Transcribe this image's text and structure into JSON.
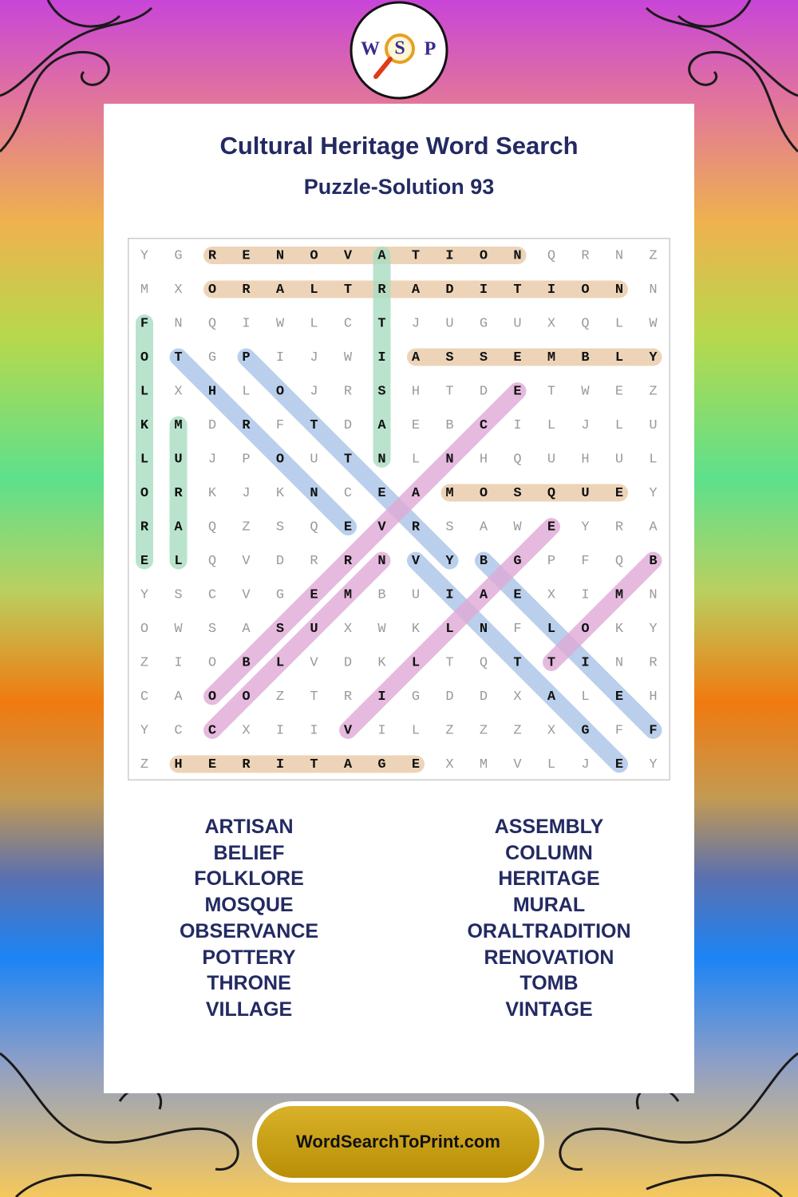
{
  "logo": [
    "W",
    "S",
    "P"
  ],
  "header": {
    "title": "Cultural Heritage Word Search",
    "subtitle": "Puzzle-Solution 93"
  },
  "grid": {
    "rows": [
      [
        "Y",
        "G",
        "R",
        "E",
        "N",
        "O",
        "V",
        "A",
        "T",
        "I",
        "O",
        "N",
        "Q",
        "R",
        "N",
        "Z"
      ],
      [
        "M",
        "X",
        "O",
        "R",
        "A",
        "L",
        "T",
        "R",
        "A",
        "D",
        "I",
        "T",
        "I",
        "O",
        "N",
        "N"
      ],
      [
        "F",
        "N",
        "Q",
        "I",
        "W",
        "L",
        "C",
        "T",
        "J",
        "U",
        "G",
        "U",
        "X",
        "Q",
        "L",
        "W"
      ],
      [
        "O",
        "T",
        "G",
        "P",
        "I",
        "J",
        "W",
        "I",
        "A",
        "S",
        "S",
        "E",
        "M",
        "B",
        "L",
        "Y"
      ],
      [
        "L",
        "X",
        "H",
        "L",
        "O",
        "J",
        "R",
        "S",
        "H",
        "T",
        "D",
        "E",
        "T",
        "W",
        "E",
        "Z"
      ],
      [
        "K",
        "M",
        "D",
        "R",
        "F",
        "T",
        "D",
        "A",
        "E",
        "B",
        "C",
        "I",
        "L",
        "J",
        "L",
        "U"
      ],
      [
        "L",
        "U",
        "J",
        "P",
        "O",
        "U",
        "T",
        "N",
        "L",
        "N",
        "H",
        "Q",
        "U",
        "H",
        "U",
        "L"
      ],
      [
        "O",
        "R",
        "K",
        "J",
        "K",
        "N",
        "C",
        "E",
        "A",
        "M",
        "O",
        "S",
        "Q",
        "U",
        "E",
        "Y"
      ],
      [
        "R",
        "A",
        "Q",
        "Z",
        "S",
        "Q",
        "E",
        "V",
        "R",
        "S",
        "A",
        "W",
        "E",
        "Y",
        "R",
        "A"
      ],
      [
        "E",
        "L",
        "Q",
        "V",
        "D",
        "R",
        "R",
        "N",
        "V",
        "Y",
        "B",
        "G",
        "P",
        "F",
        "Q",
        "B"
      ],
      [
        "Y",
        "S",
        "C",
        "V",
        "G",
        "E",
        "M",
        "B",
        "U",
        "I",
        "A",
        "E",
        "X",
        "I",
        "M",
        "N"
      ],
      [
        "O",
        "W",
        "S",
        "A",
        "S",
        "U",
        "X",
        "W",
        "K",
        "L",
        "N",
        "F",
        "L",
        "O",
        "K",
        "Y"
      ],
      [
        "Z",
        "I",
        "O",
        "B",
        "L",
        "V",
        "D",
        "K",
        "L",
        "T",
        "Q",
        "T",
        "T",
        "I",
        "N",
        "R"
      ],
      [
        "C",
        "A",
        "O",
        "O",
        "Z",
        "T",
        "R",
        "I",
        "G",
        "D",
        "D",
        "X",
        "A",
        "L",
        "E",
        "H"
      ],
      [
        "Y",
        "C",
        "C",
        "X",
        "I",
        "I",
        "V",
        "I",
        "L",
        "Z",
        "Z",
        "Z",
        "X",
        "G",
        "F",
        "F"
      ],
      [
        "Z",
        "H",
        "E",
        "R",
        "I",
        "T",
        "A",
        "G",
        "E",
        "X",
        "M",
        "V",
        "L",
        "J",
        "E",
        "Y"
      ]
    ],
    "solutions": [
      {
        "start": [
          0,
          2
        ],
        "end": [
          0,
          11
        ],
        "color": "#e9c9a6"
      },
      {
        "start": [
          1,
          2
        ],
        "end": [
          1,
          14
        ],
        "color": "#e9c9a6"
      },
      {
        "start": [
          3,
          8
        ],
        "end": [
          3,
          15
        ],
        "color": "#e9c9a6"
      },
      {
        "start": [
          7,
          9
        ],
        "end": [
          7,
          14
        ],
        "color": "#e9c9a6"
      },
      {
        "start": [
          15,
          1
        ],
        "end": [
          15,
          8
        ],
        "color": "#e9c9a6"
      },
      {
        "start": [
          0,
          7
        ],
        "end": [
          6,
          7
        ],
        "color": "#a9dcc2"
      },
      {
        "start": [
          2,
          0
        ],
        "end": [
          9,
          0
        ],
        "color": "#a9dcc2"
      },
      {
        "start": [
          5,
          1
        ],
        "end": [
          9,
          1
        ],
        "color": "#a9dcc2"
      },
      {
        "start": [
          3,
          1
        ],
        "end": [
          8,
          6
        ],
        "color": "#a9c3e6"
      },
      {
        "start": [
          3,
          3
        ],
        "end": [
          9,
          9
        ],
        "color": "#a9c3e6"
      },
      {
        "start": [
          9,
          8
        ],
        "end": [
          15,
          14
        ],
        "color": "#a9c3e6"
      },
      {
        "start": [
          9,
          10
        ],
        "end": [
          14,
          15
        ],
        "color": "#a9c3e6"
      },
      {
        "start": [
          13,
          2
        ],
        "end": [
          4,
          11
        ],
        "color": "#e0a9d6"
      },
      {
        "start": [
          14,
          6
        ],
        "end": [
          8,
          12
        ],
        "color": "#e0a9d6"
      },
      {
        "start": [
          14,
          2
        ],
        "end": [
          9,
          7
        ],
        "color": "#e0a9d6"
      },
      {
        "start": [
          12,
          12
        ],
        "end": [
          9,
          15
        ],
        "color": "#e0a9d6"
      }
    ]
  },
  "word_list": {
    "left": [
      "ARTISAN",
      "BELIEF",
      "FOLKLORE",
      "MOSQUE",
      "OBSERVANCE",
      "POTTERY",
      "THRONE",
      "VILLAGE"
    ],
    "right": [
      "ASSEMBLY",
      "COLUMN",
      "HERITAGE",
      "MURAL",
      "ORALTRADITION",
      "RENOVATION",
      "TOMB",
      "VINTAGE"
    ]
  },
  "footer": "WordSearchToPrint.com"
}
